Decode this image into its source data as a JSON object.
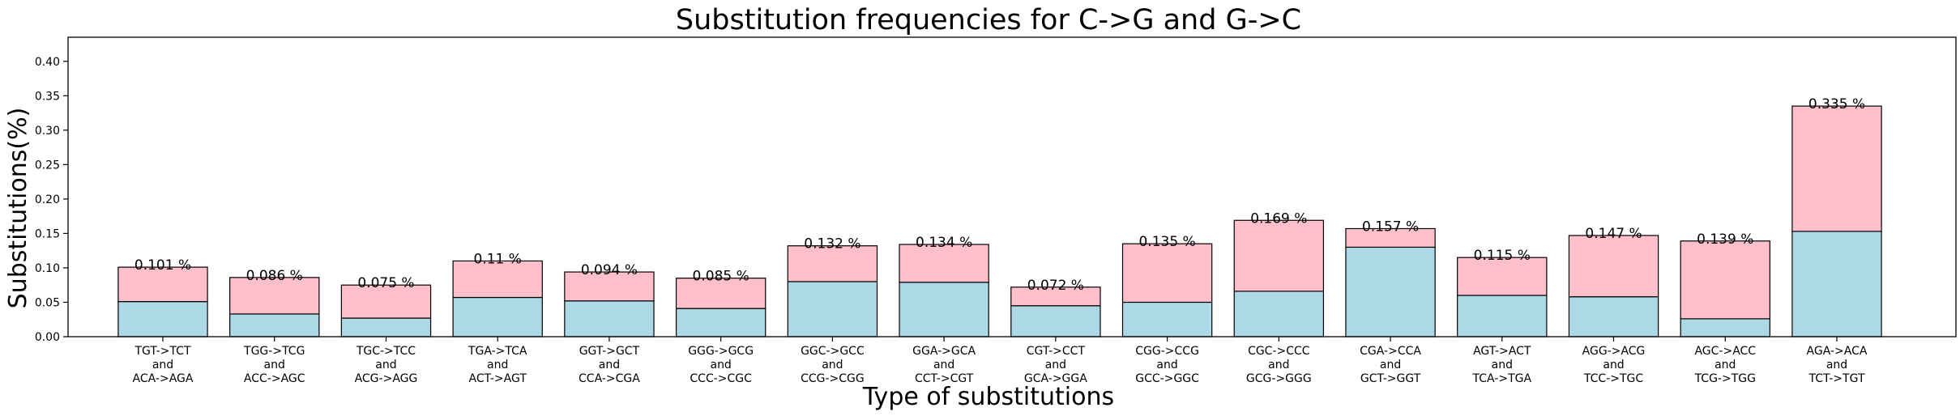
{
  "chart_data": {
    "type": "bar",
    "stacked": true,
    "title": "Substitution frequencies for C->G and G->C",
    "xlabel": "Type of substitutions",
    "ylabel": "Substitutions(%)",
    "ylim": [
      0,
      0.435
    ],
    "yticks": [
      "0.00",
      "0.05",
      "0.10",
      "0.15",
      "0.20",
      "0.25",
      "0.30",
      "0.35",
      "0.40"
    ],
    "grid": false,
    "categories": [
      [
        "TGT->TCT",
        "and",
        "ACA->AGA"
      ],
      [
        "TGG->TCG",
        "and",
        "ACC->AGC"
      ],
      [
        "TGC->TCC",
        "and",
        "ACG->AGG"
      ],
      [
        "TGA->TCA",
        "and",
        "ACT->AGT"
      ],
      [
        "GGT->GCT",
        "and",
        "CCA->CGA"
      ],
      [
        "GGG->GCG",
        "and",
        "CCC->CGC"
      ],
      [
        "GGC->GCC",
        "and",
        "CCG->CGG"
      ],
      [
        "GGA->GCA",
        "and",
        "CCT->CGT"
      ],
      [
        "CGT->CCT",
        "and",
        "GCA->GGA"
      ],
      [
        "CGG->CCG",
        "and",
        "GCC->GGC"
      ],
      [
        "CGC->CCC",
        "and",
        "GCG->GGG"
      ],
      [
        "CGA->CCA",
        "and",
        "GCT->GGT"
      ],
      [
        "AGT->ACT",
        "and",
        "TCA->TGA"
      ],
      [
        "AGG->ACG",
        "and",
        "TCC->TGC"
      ],
      [
        "AGC->ACC",
        "and",
        "TCG->TGG"
      ],
      [
        "AGA->ACA",
        "and",
        "TCT->TGT"
      ]
    ],
    "series": [
      {
        "color": "#add8e6",
        "values": [
          0.051,
          0.033,
          0.027,
          0.057,
          0.052,
          0.041,
          0.08,
          0.079,
          0.045,
          0.05,
          0.066,
          0.13,
          0.06,
          0.058,
          0.026,
          0.153
        ]
      },
      {
        "color": "#ffc0cb",
        "values": [
          0.05,
          0.053,
          0.048,
          0.053,
          0.042,
          0.044,
          0.052,
          0.055,
          0.027,
          0.085,
          0.103,
          0.027,
          0.055,
          0.089,
          0.113,
          0.182
        ]
      }
    ],
    "totals": [
      0.101,
      0.086,
      0.075,
      0.11,
      0.094,
      0.085,
      0.132,
      0.134,
      0.072,
      0.135,
      0.169,
      0.157,
      0.115,
      0.147,
      0.139,
      0.335
    ],
    "data_labels": [
      "0.101 %",
      "0.086 %",
      "0.075 %",
      "0.11 %",
      "0.094 %",
      "0.085 %",
      "0.132 %",
      "0.134 %",
      "0.072 %",
      "0.135 %",
      "0.169 %",
      "0.157 %",
      "0.115 %",
      "0.147 %",
      "0.139 %",
      "0.335 %"
    ]
  }
}
